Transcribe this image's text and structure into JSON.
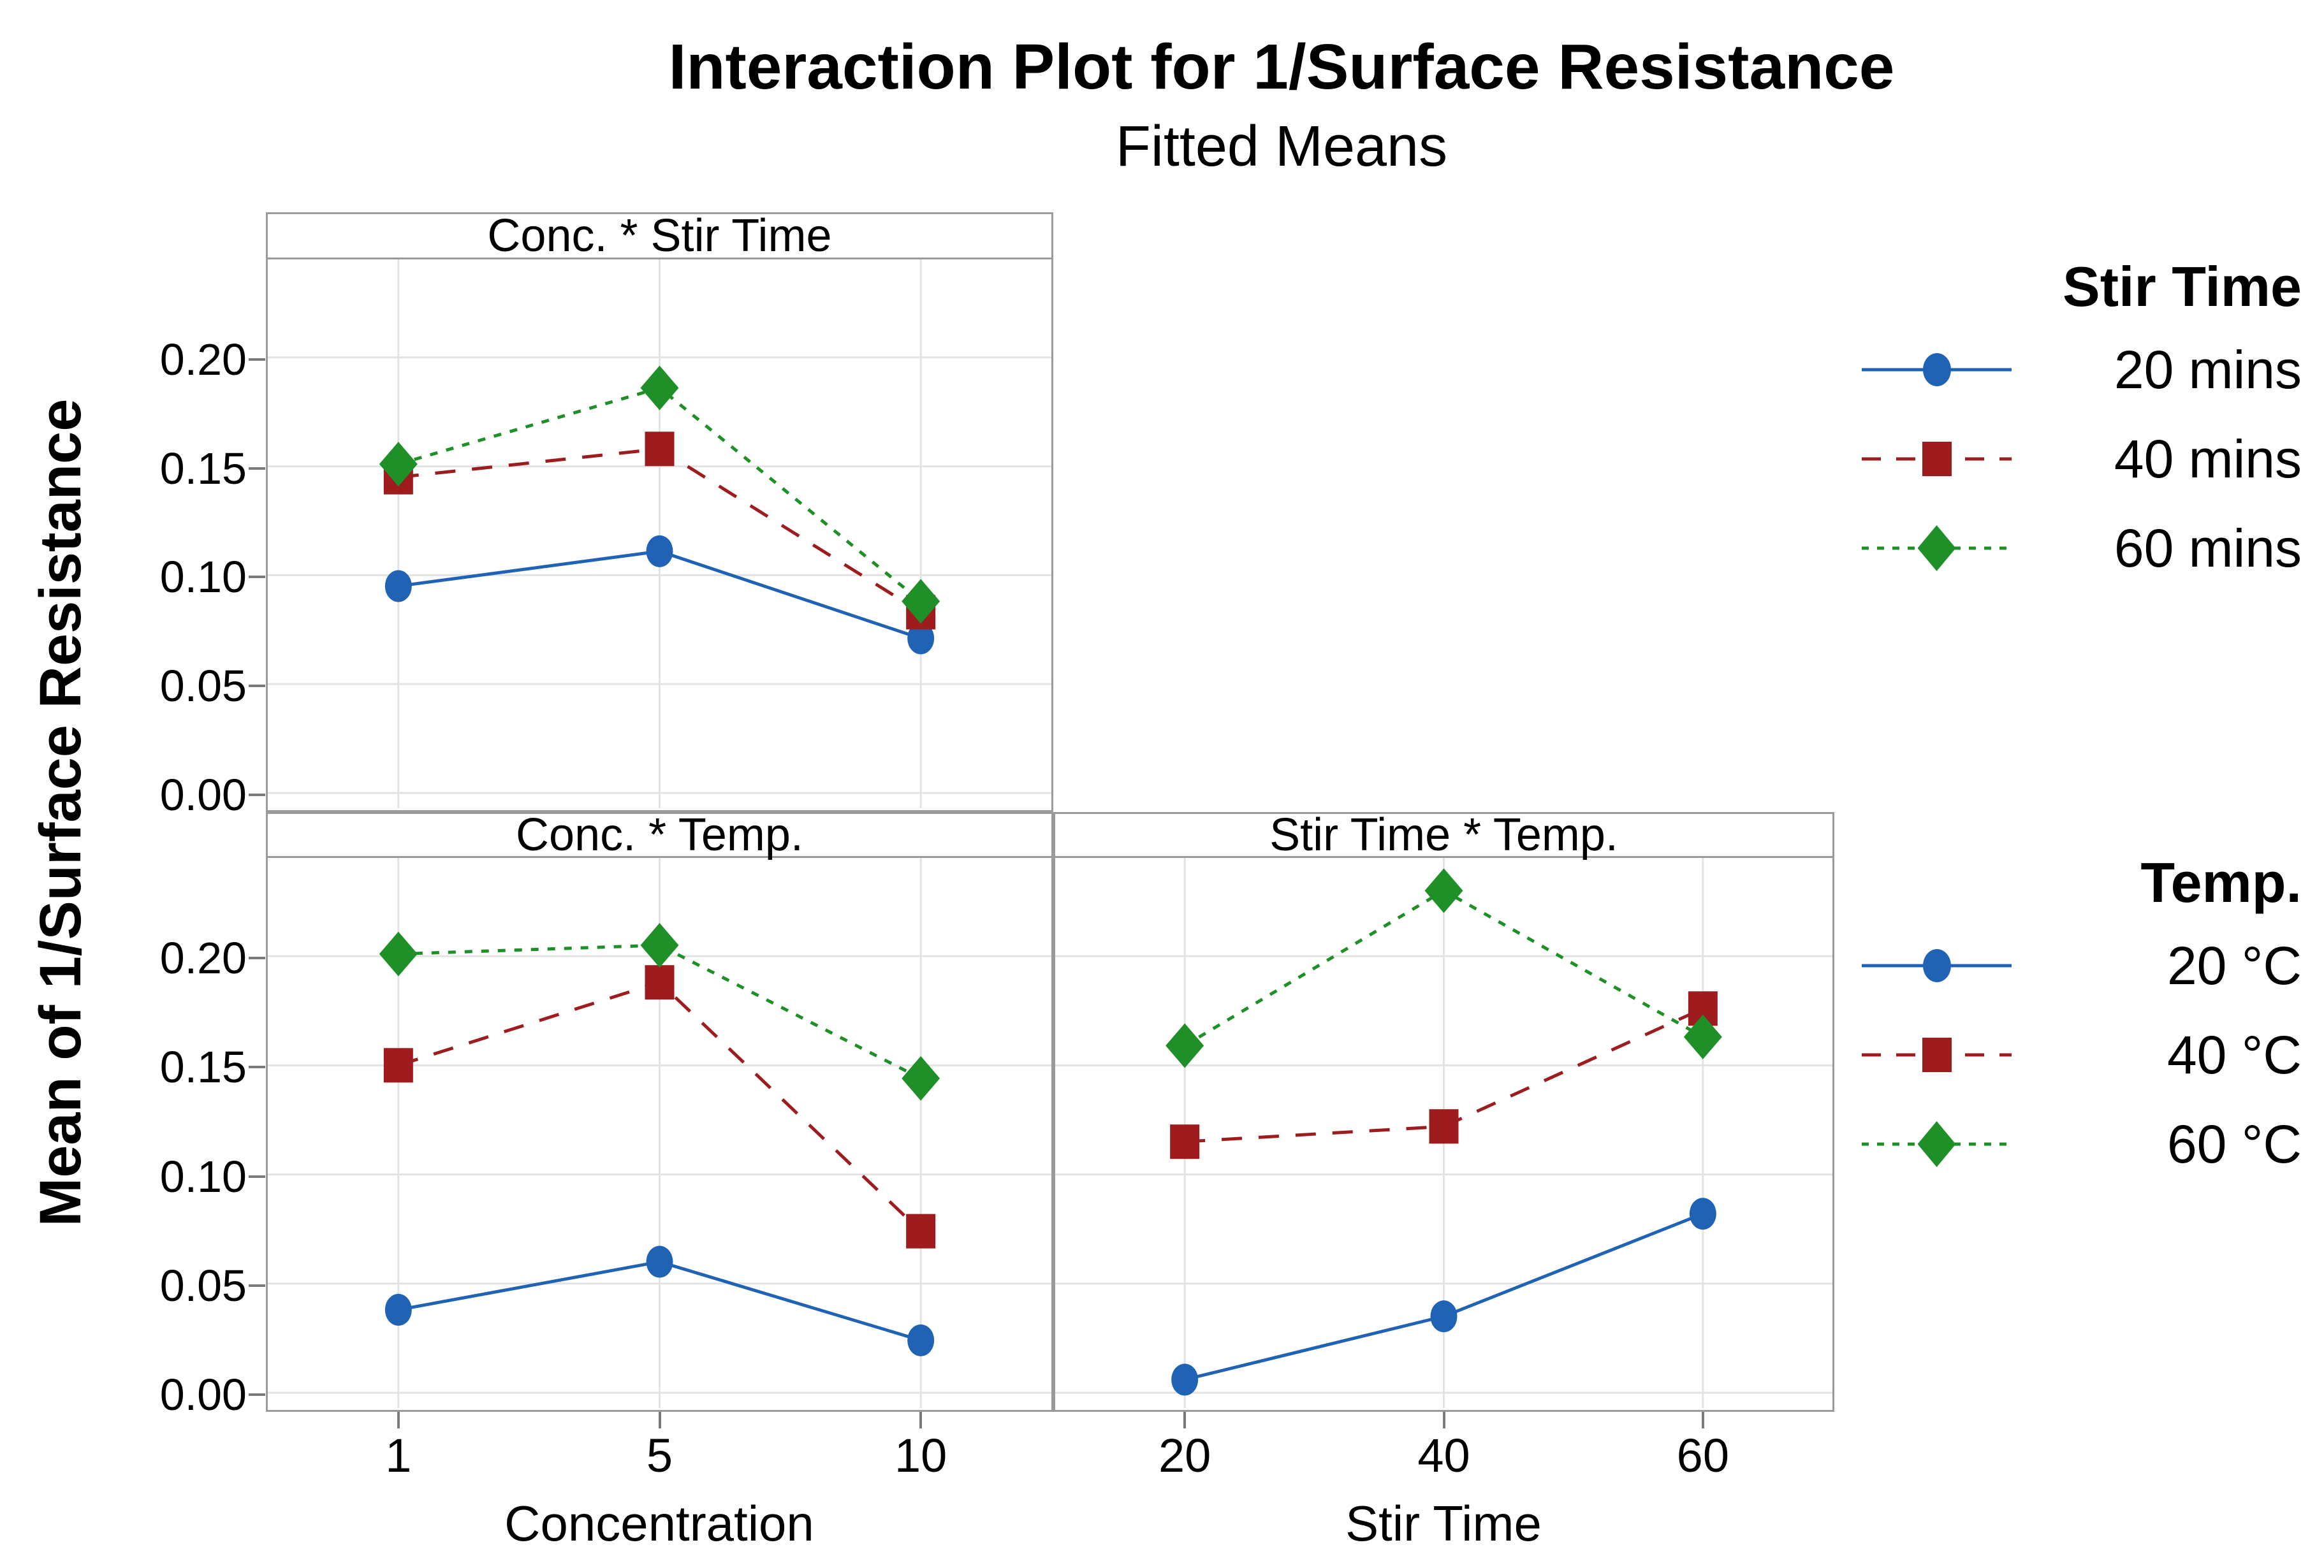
{
  "title": "Interaction Plot for 1/Surface Resistance",
  "subtitle": "Fitted Means",
  "y_axis_label": "Mean of 1/Surface Resistance",
  "x_axis_labels": {
    "left": "Concentration",
    "right": "Stir Time"
  },
  "colors": {
    "blue": "#2063b4",
    "red": "#9e1b1e",
    "green": "#1f8f28",
    "grid": "#e3e3e3",
    "border": "#9a9a9a",
    "tick": "#7a7a7a",
    "text": "#000000"
  },
  "legends": [
    {
      "title": "Stir Time",
      "items": [
        {
          "label": "20 mins",
          "marker": "circle",
          "line": "solid"
        },
        {
          "label": "40 mins",
          "marker": "square",
          "line": "dashed"
        },
        {
          "label": "60 mins",
          "marker": "diamond",
          "line": "dotted"
        }
      ]
    },
    {
      "title": "Temp.",
      "items": [
        {
          "label": "20 °C",
          "marker": "circle",
          "line": "solid"
        },
        {
          "label": "40 °C",
          "marker": "square",
          "line": "dashed"
        },
        {
          "label": "60 °C",
          "marker": "diamond",
          "line": "dotted"
        }
      ]
    }
  ],
  "chart_data": {
    "type": "line",
    "title": "Interaction Plot for 1/Surface Resistance",
    "subtitle": "Fitted Means",
    "ylabel": "Mean of 1/Surface Resistance",
    "ylim": [
      -0.007,
      0.245
    ],
    "yticks": [
      0.2,
      0.15,
      0.1,
      0.05,
      0.0
    ],
    "ytick_labels": [
      "0.20",
      "0.15",
      "0.10",
      "0.05",
      "0.00"
    ],
    "grid": true,
    "legend_position": "right",
    "panels": [
      {
        "title": "Conc. * Stir Time",
        "xlabel": "Concentration",
        "x_categories": [
          "1",
          "5",
          "10"
        ],
        "legend": "Stir Time",
        "series": [
          {
            "name": "20 mins",
            "color_key": "blue",
            "marker": "circle",
            "line": "solid",
            "values": [
              0.095,
              0.111,
              0.071
            ]
          },
          {
            "name": "40 mins",
            "color_key": "red",
            "marker": "square",
            "line": "dashed",
            "values": [
              0.145,
              0.158,
              0.083
            ]
          },
          {
            "name": "60 mins",
            "color_key": "green",
            "marker": "diamond",
            "line": "dotted",
            "values": [
              0.151,
              0.186,
              0.088
            ]
          }
        ]
      },
      {
        "title": "Conc. * Temp.",
        "xlabel": "Concentration",
        "x_categories": [
          "1",
          "5",
          "10"
        ],
        "legend": "Temp.",
        "series": [
          {
            "name": "20 °C",
            "color_key": "blue",
            "marker": "circle",
            "line": "solid",
            "values": [
              0.038,
              0.06,
              0.024
            ]
          },
          {
            "name": "40 °C",
            "color_key": "red",
            "marker": "square",
            "line": "dashed",
            "values": [
              0.15,
              0.188,
              0.074
            ]
          },
          {
            "name": "60 °C",
            "color_key": "green",
            "marker": "diamond",
            "line": "dotted",
            "values": [
              0.201,
              0.205,
              0.144
            ]
          }
        ]
      },
      {
        "title": "Stir Time * Temp.",
        "xlabel": "Stir Time",
        "x_categories": [
          "20",
          "40",
          "60"
        ],
        "legend": "Temp.",
        "series": [
          {
            "name": "20 °C",
            "color_key": "blue",
            "marker": "circle",
            "line": "solid",
            "values": [
              0.006,
              0.035,
              0.082
            ]
          },
          {
            "name": "40 °C",
            "color_key": "red",
            "marker": "square",
            "line": "dashed",
            "values": [
              0.115,
              0.122,
              0.176
            ]
          },
          {
            "name": "60 °C",
            "color_key": "green",
            "marker": "diamond",
            "line": "dotted",
            "values": [
              0.159,
              0.23,
              0.163
            ]
          }
        ]
      }
    ]
  }
}
